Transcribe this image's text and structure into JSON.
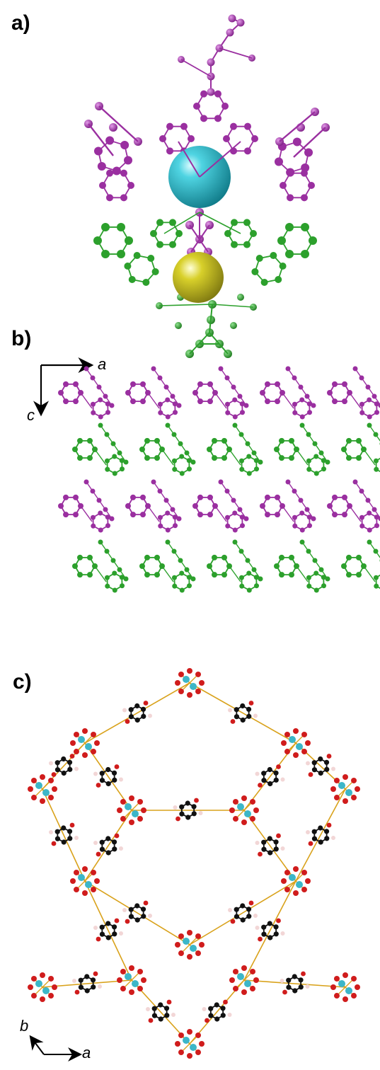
{
  "panels": [
    {
      "label": "a)"
    },
    {
      "label": "b)",
      "axes": {
        "horizontal": "a",
        "vertical": "c"
      }
    },
    {
      "label": "c)",
      "axes": {
        "diagonal": "b",
        "horizontal": "a"
      }
    }
  ],
  "colors": {
    "layer_1": "#9a2fa0",
    "layer_2": "#2ca02c",
    "cation_sphere": "#2ab7c6",
    "anion_sphere": "#d4cc22",
    "carbon": "#111111",
    "oxygen": "#d01c1c",
    "hydrogen": "#f2d6d6",
    "metal": "#3cb6c8",
    "bond": "#d9a21b"
  }
}
